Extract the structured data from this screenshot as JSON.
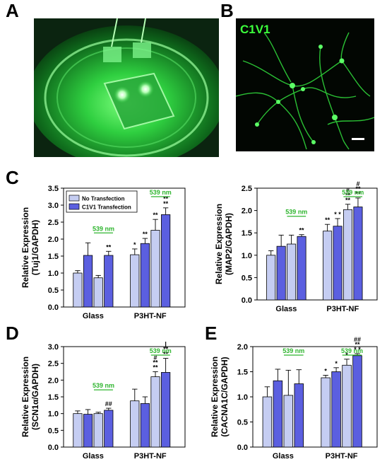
{
  "panels": {
    "a": {
      "letter": "A"
    },
    "b": {
      "letter": "B",
      "label": "C1V1"
    },
    "c": {
      "letter": "C"
    },
    "d": {
      "letter": "D"
    },
    "e": {
      "letter": "E"
    }
  },
  "colors": {
    "no_transfection": "#c5cdf2",
    "c1v1_transfection": "#5b5fe0",
    "annotation_green": "#2fb52f"
  },
  "chart_data": [
    {
      "id": "tuj1",
      "type": "bar",
      "ylabel": "Relative Expression\n(Tuj1/GAPDH)",
      "ylim": [
        0,
        3.5
      ],
      "yticks": [
        "0.0",
        "0.5",
        "1.0",
        "1.5",
        "2.0",
        "2.5",
        "3.0",
        "3.5"
      ],
      "categories": [
        "Glass",
        "P3HT-NF"
      ],
      "legend": {
        "entries": [
          "No Transfection",
          "C1V1 Transfection"
        ],
        "placement": "top-left"
      },
      "bars": [
        {
          "value": 1.0,
          "error": 0.07,
          "series": 0,
          "group": 0
        },
        {
          "value": 1.52,
          "error": 0.37,
          "series": 1,
          "group": 0
        },
        {
          "value": 0.86,
          "error": 0.07,
          "series": 0,
          "group": 0
        },
        {
          "value": 1.52,
          "error": 0.12,
          "series": 1,
          "group": 0
        },
        {
          "value": 1.54,
          "error": 0.17,
          "series": 0,
          "group": 1
        },
        {
          "value": 1.87,
          "error": 0.15,
          "series": 1,
          "group": 1
        },
        {
          "value": 2.26,
          "error": 0.32,
          "series": 0,
          "group": 1
        },
        {
          "value": 2.72,
          "error": 0.2,
          "series": 1,
          "group": 1
        }
      ],
      "stars": [
        "",
        "",
        "",
        "**",
        "*",
        "**",
        "**",
        "**\n**"
      ],
      "light_labels": [
        {
          "text": "539 nm",
          "from": 2,
          "to": 3
        },
        {
          "text": "539 nm",
          "from": 6,
          "to": 7
        }
      ],
      "extra_marks": [
        "##",
        "|"
      ]
    },
    {
      "id": "map2",
      "type": "bar",
      "ylabel": "Relative Expression\n(MAP2/GAPDH)",
      "ylim": [
        0,
        2.5
      ],
      "yticks": [
        "0.0",
        "0.5",
        "1.0",
        "1.5",
        "2.0",
        "2.5"
      ],
      "categories": [
        "Glass",
        "P3HT-NF"
      ],
      "bars": [
        {
          "value": 1.0,
          "error": 0.1,
          "series": 0,
          "group": 0
        },
        {
          "value": 1.2,
          "error": 0.25,
          "series": 1,
          "group": 0
        },
        {
          "value": 1.25,
          "error": 0.2,
          "series": 0,
          "group": 0
        },
        {
          "value": 1.42,
          "error": 0.04,
          "series": 1,
          "group": 0
        },
        {
          "value": 1.54,
          "error": 0.15,
          "series": 0,
          "group": 1
        },
        {
          "value": 1.65,
          "error": 0.17,
          "series": 1,
          "group": 1
        },
        {
          "value": 2.02,
          "error": 0.12,
          "series": 0,
          "group": 1
        },
        {
          "value": 2.08,
          "error": 0.2,
          "series": 1,
          "group": 1
        }
      ],
      "stars": [
        "",
        "",
        "",
        "**",
        "**",
        "* *",
        "#\n**\n**",
        "#\n**\n**"
      ],
      "light_labels": [
        {
          "text": "539 nm",
          "from": 2,
          "to": 3
        },
        {
          "text": "539 nm",
          "from": 6,
          "to": 7
        }
      ],
      "extra_marks": [
        "##",
        "|"
      ]
    },
    {
      "id": "scn1a",
      "type": "bar",
      "ylabel": "Relative Expression\n(SCN1α/GAPDH)",
      "ylim": [
        0,
        3.0
      ],
      "yticks": [
        "0.0",
        "0.5",
        "1.0",
        "1.5",
        "2.0",
        "2.5",
        "3.0"
      ],
      "categories": [
        "Glass",
        "P3HT-NF"
      ],
      "bars": [
        {
          "value": 1.0,
          "error": 0.08,
          "series": 0,
          "group": 0
        },
        {
          "value": 0.98,
          "error": 0.14,
          "series": 1,
          "group": 0
        },
        {
          "value": 1.0,
          "error": 0.04,
          "series": 0,
          "group": 0
        },
        {
          "value": 1.1,
          "error": 0.06,
          "series": 1,
          "group": 0
        },
        {
          "value": 1.38,
          "error": 0.35,
          "series": 0,
          "group": 1
        },
        {
          "value": 1.3,
          "error": 0.2,
          "series": 1,
          "group": 1
        },
        {
          "value": 2.1,
          "error": 0.15,
          "series": 0,
          "group": 1
        },
        {
          "value": 2.23,
          "error": 0.42,
          "series": 1,
          "group": 1
        }
      ],
      "stars": [
        "",
        "",
        "",
        "##",
        "",
        "",
        "#\n**\n**",
        "|\n**\n**"
      ],
      "light_labels": [
        {
          "text": "539 nm",
          "from": 2,
          "to": 3
        },
        {
          "text": "539 nm",
          "from": 6,
          "to": 7
        }
      ],
      "extra_marks": [
        "##",
        "|"
      ]
    },
    {
      "id": "cacna1c",
      "type": "bar",
      "ylabel": "Relative Expression\n(CACNA1C/GAPDH)",
      "ylim": [
        0,
        2.0
      ],
      "yticks": [
        "0.0",
        "0.5",
        "1.0",
        "1.5",
        "2.0"
      ],
      "categories": [
        "Glass",
        "P3HT-NF"
      ],
      "bars": [
        {
          "value": 1.0,
          "error": 0.2,
          "series": 0,
          "group": 0
        },
        {
          "value": 1.32,
          "error": 0.23,
          "series": 1,
          "group": 0
        },
        {
          "value": 1.03,
          "error": 0.5,
          "series": 0,
          "group": 0
        },
        {
          "value": 1.26,
          "error": 0.28,
          "series": 1,
          "group": 0
        },
        {
          "value": 1.38,
          "error": 0.05,
          "series": 0,
          "group": 1
        },
        {
          "value": 1.5,
          "error": 0.08,
          "series": 1,
          "group": 1
        },
        {
          "value": 1.63,
          "error": 0.12,
          "series": 0,
          "group": 1
        },
        {
          "value": 1.82,
          "error": 0.04,
          "series": 1,
          "group": 1
        }
      ],
      "stars": [
        "",
        "",
        "",
        "",
        "*",
        "*",
        "*",
        "##\n**\n* *"
      ],
      "light_labels": [
        {
          "text": "539 nm",
          "from": 2,
          "to": 3
        },
        {
          "text": "539 nm",
          "from": 6,
          "to": 7
        }
      ],
      "extra_marks": [
        "##",
        "|"
      ]
    }
  ]
}
